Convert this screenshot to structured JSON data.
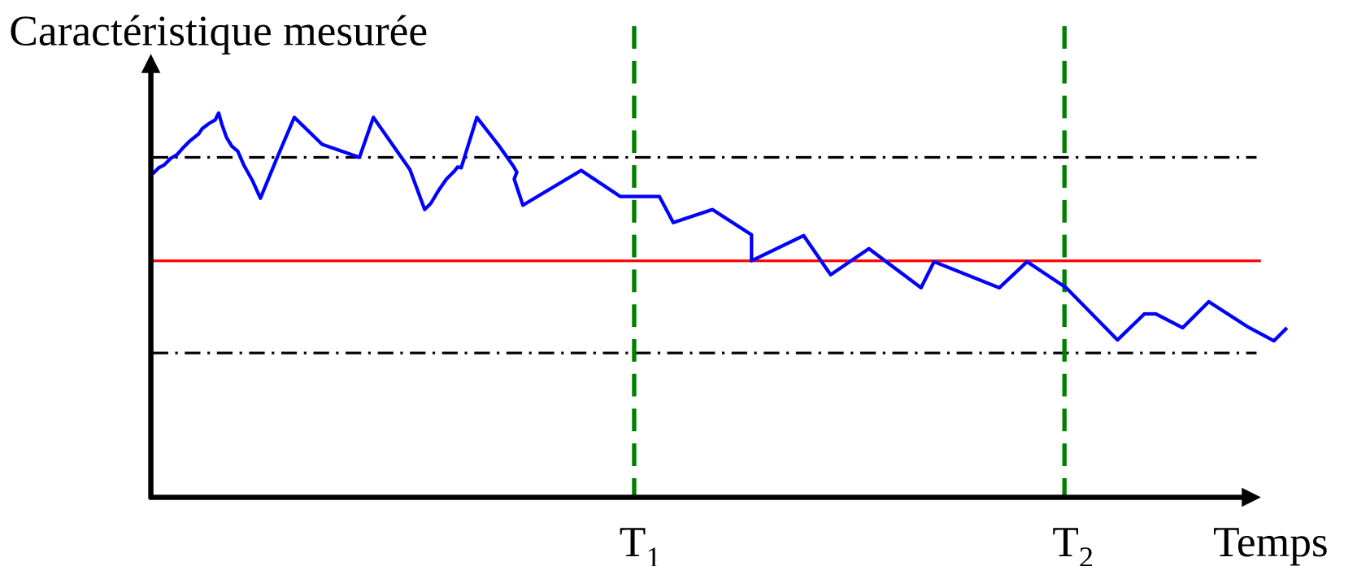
{
  "title": "Caractéristique mesurée",
  "x_axis_label": "Temps",
  "markers": [
    {
      "text": "T",
      "subscript": "1"
    },
    {
      "text": "T",
      "subscript": "2"
    }
  ]
}
